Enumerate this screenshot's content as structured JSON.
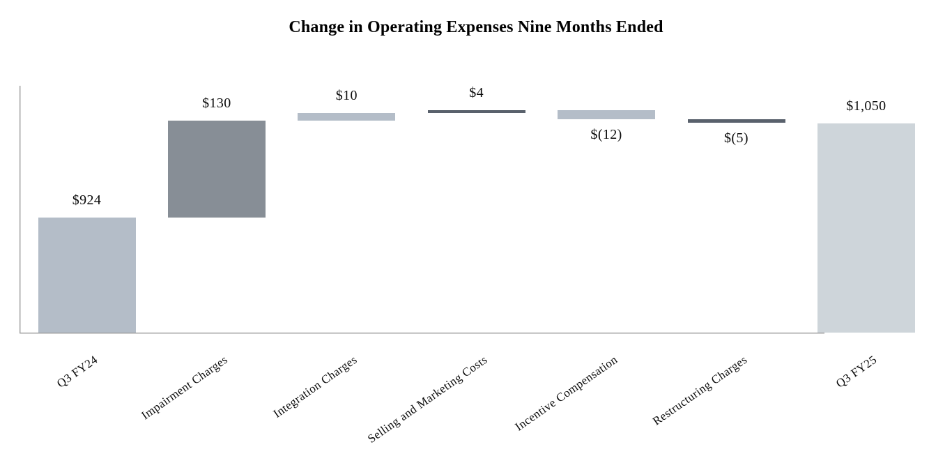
{
  "chart_data": {
    "type": "bar",
    "variant": "waterfall",
    "title": "Change in Operating Expenses Nine Months Ended",
    "xlabel": "",
    "ylabel": "",
    "grid": false,
    "legend": null,
    "ylim": [
      769,
      1101
    ],
    "x_tick_rotation_deg": 35,
    "categories": [
      "Q3 FY24",
      "Impairment Charges",
      "Integration Charges",
      "Selling and Marketing Costs",
      "Incentive Compensation",
      "Restructuring Charges",
      "Q3 FY25"
    ],
    "bars": [
      {
        "category": "Q3 FY24",
        "label": "$924",
        "value": 924,
        "kind": "total",
        "start": 0,
        "end": 924,
        "color": "#b4bdc8"
      },
      {
        "category": "Impairment Charges",
        "label": "$130",
        "value": 130,
        "kind": "increase",
        "start": 924,
        "end": 1054,
        "color": "#878e96"
      },
      {
        "category": "Integration Charges",
        "label": "$10",
        "value": 10,
        "kind": "increase",
        "start": 1054,
        "end": 1064,
        "color": "#b4bdc8"
      },
      {
        "category": "Selling and Marketing Costs",
        "label": "$4",
        "value": 4,
        "kind": "increase",
        "start": 1064,
        "end": 1068,
        "color": "#59616c"
      },
      {
        "category": "Incentive Compensation",
        "label": "$(12)",
        "value": -12,
        "kind": "decrease",
        "start": 1068,
        "end": 1056,
        "color": "#b4bdc8"
      },
      {
        "category": "Restructuring Charges",
        "label": "$(5)",
        "value": -5,
        "kind": "decrease",
        "start": 1056,
        "end": 1051,
        "color": "#59616c"
      },
      {
        "category": "Q3 FY25",
        "label": "$1,050",
        "value": 1050,
        "kind": "total",
        "start": 0,
        "end": 1050,
        "color": "#ced5da"
      }
    ],
    "colors": {
      "light_bar": "#b4bdc8",
      "medium_bar": "#878e96",
      "dark_bar": "#59616c",
      "total_end_bar": "#ced5da",
      "axis_line": "#9c9c9c",
      "text": "#0b0b0b"
    }
  }
}
